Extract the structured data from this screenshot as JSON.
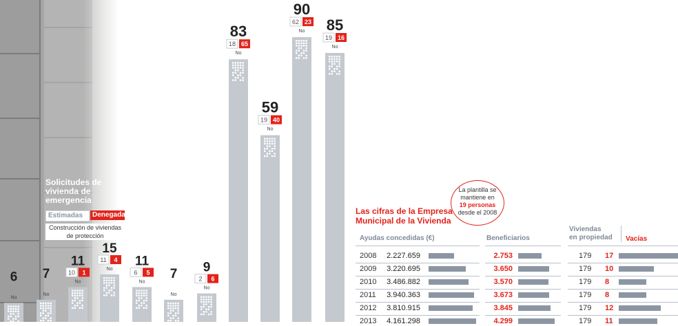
{
  "chart_data": {
    "type": "bar",
    "totals": [
      6,
      7,
      11,
      15,
      11,
      7,
      9,
      83,
      59,
      90,
      85
    ],
    "estimadas": [
      null,
      null,
      10,
      11,
      6,
      null,
      2,
      18,
      19,
      62,
      19
    ],
    "denegadas": [
      null,
      null,
      1,
      4,
      5,
      null,
      6,
      65,
      40,
      23,
      16
    ],
    "notes": [
      "No",
      "No",
      "No",
      "No",
      "No",
      "No",
      "No",
      "No",
      "No",
      "No",
      "No"
    ]
  },
  "legend": {
    "title": "Solicitudes de vivienda de emergencia",
    "estimadas": "Estimadas",
    "denegadas": "Denegadas",
    "note": "Construcción de viviendas de protección"
  },
  "table": {
    "title": "Las cifras de la Empresa Municipal de la Vivienda",
    "bubble": {
      "line1": "La plantilla se",
      "line2": "mantiene en",
      "highlight": "19 personas",
      "line4": "desde el 2008"
    },
    "headers": {
      "ayudas": "Ayudas concedidas (€)",
      "beneficiarios": "Beneficiarios",
      "viviendas": "Viviendas",
      "viviendas2": "en propiedad",
      "vacias": "Vacías"
    },
    "rows": [
      {
        "year": "2008",
        "ayudas": "2.227.659",
        "ayudas_n": 2227659,
        "ben": "2.753",
        "ben_n": 2753,
        "prop": "179",
        "vac": "17",
        "vac_n": 17
      },
      {
        "year": "2009",
        "ayudas": "3.220.695",
        "ayudas_n": 3220695,
        "ben": "3.650",
        "ben_n": 3650,
        "prop": "179",
        "vac": "10",
        "vac_n": 10
      },
      {
        "year": "2010",
        "ayudas": "3.486.882",
        "ayudas_n": 3486882,
        "ben": "3.570",
        "ben_n": 3570,
        "prop": "179",
        "vac": "8",
        "vac_n": 8
      },
      {
        "year": "2011",
        "ayudas": "3.940.363",
        "ayudas_n": 3940363,
        "ben": "3.673",
        "ben_n": 3673,
        "prop": "179",
        "vac": "8",
        "vac_n": 8
      },
      {
        "year": "2012",
        "ayudas": "3.810.915",
        "ayudas_n": 3810915,
        "ben": "3.845",
        "ben_n": 3845,
        "prop": "179",
        "vac": "12",
        "vac_n": 12
      },
      {
        "year": "2013",
        "ayudas": "4.161.298",
        "ayudas_n": 4161298,
        "ben": "4.299",
        "ben_n": 4299,
        "prop": "179",
        "vac": "11",
        "vac_n": 11
      }
    ]
  },
  "colors": {
    "bar": "#c4c9cf",
    "red": "#e2231a",
    "tableBar": "#8c96a3"
  }
}
